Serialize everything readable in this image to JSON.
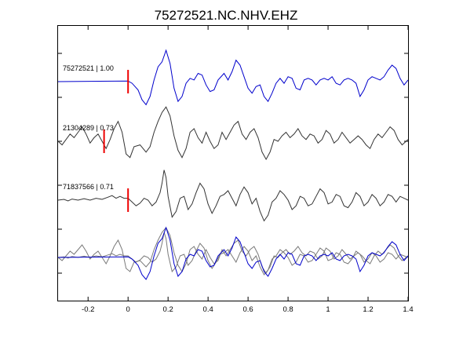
{
  "chart_data": {
    "type": "line",
    "title": "75272521.NC.NHV.EHZ",
    "xlabel": "",
    "ylabel": "",
    "xlim": [
      -0.35,
      1.4
    ],
    "xticks": [
      -0.2,
      0,
      0.2,
      0.4,
      0.6,
      0.8,
      1,
      1.2,
      1.4
    ],
    "xtick_labels": [
      "-0.2",
      "0",
      "0.2",
      "0.4",
      "0.6",
      "0.8",
      "1",
      "1.2",
      "1.4"
    ],
    "grid": false,
    "legend": "none",
    "colors": {
      "primary": "#0000cc",
      "secondary": "#333333",
      "overlay_gray": "#7a7a7a",
      "pick": "#ee0000"
    },
    "traces": [
      {
        "label": "75272521 | 1.00",
        "color": "#0000cc",
        "pick_time": 0.0,
        "points": [
          [
            -0.35,
            0
          ],
          [
            0,
            0.02
          ],
          [
            0.02,
            -0.05
          ],
          [
            0.05,
            -0.25
          ],
          [
            0.07,
            -0.55
          ],
          [
            0.09,
            -0.7
          ],
          [
            0.11,
            -0.45
          ],
          [
            0.13,
            0.05
          ],
          [
            0.15,
            0.45
          ],
          [
            0.17,
            0.6
          ],
          [
            0.19,
            0.95
          ],
          [
            0.21,
            0.55
          ],
          [
            0.23,
            -0.2
          ],
          [
            0.25,
            -0.6
          ],
          [
            0.27,
            -0.45
          ],
          [
            0.29,
            -0.05
          ],
          [
            0.31,
            0.1
          ],
          [
            0.33,
            0.05
          ],
          [
            0.35,
            0.25
          ],
          [
            0.37,
            0.2
          ],
          [
            0.39,
            -0.1
          ],
          [
            0.41,
            -0.3
          ],
          [
            0.43,
            -0.25
          ],
          [
            0.45,
            0.05
          ],
          [
            0.48,
            0.25
          ],
          [
            0.5,
            0.05
          ],
          [
            0.52,
            0.3
          ],
          [
            0.54,
            0.65
          ],
          [
            0.56,
            0.5
          ],
          [
            0.58,
            0.15
          ],
          [
            0.6,
            -0.2
          ],
          [
            0.62,
            -0.35
          ],
          [
            0.64,
            -0.15
          ],
          [
            0.66,
            -0.1
          ],
          [
            0.68,
            -0.45
          ],
          [
            0.7,
            -0.6
          ],
          [
            0.72,
            -0.35
          ],
          [
            0.74,
            -0.05
          ],
          [
            0.76,
            0.1
          ],
          [
            0.78,
            -0.05
          ],
          [
            0.8,
            0.15
          ],
          [
            0.82,
            0.1
          ],
          [
            0.84,
            -0.2
          ],
          [
            0.86,
            -0.25
          ],
          [
            0.88,
            0.05
          ],
          [
            0.9,
            0.1
          ],
          [
            0.92,
            0.05
          ],
          [
            0.94,
            -0.1
          ],
          [
            0.96,
            0.05
          ],
          [
            0.98,
            0.1
          ],
          [
            1.0,
            0.05
          ],
          [
            1.02,
            0.15
          ],
          [
            1.04,
            -0.05
          ],
          [
            1.06,
            -0.1
          ],
          [
            1.08,
            0.05
          ],
          [
            1.1,
            0.1
          ],
          [
            1.12,
            0.05
          ],
          [
            1.14,
            -0.05
          ],
          [
            1.16,
            -0.45
          ],
          [
            1.18,
            -0.25
          ],
          [
            1.2,
            0.05
          ],
          [
            1.22,
            0.15
          ],
          [
            1.24,
            0.1
          ],
          [
            1.26,
            0.05
          ],
          [
            1.28,
            0.15
          ],
          [
            1.3,
            0.35
          ],
          [
            1.32,
            0.5
          ],
          [
            1.34,
            0.4
          ],
          [
            1.36,
            0.1
          ],
          [
            1.38,
            -0.1
          ],
          [
            1.4,
            0.05
          ]
        ]
      },
      {
        "label": "21304289 | 0.73",
        "color": "#333333",
        "pick_time": -0.12,
        "points": [
          [
            -0.35,
            0
          ],
          [
            -0.33,
            -0.1
          ],
          [
            -0.31,
            0.05
          ],
          [
            -0.29,
            0.2
          ],
          [
            -0.27,
            0.1
          ],
          [
            -0.25,
            0.25
          ],
          [
            -0.23,
            0.4
          ],
          [
            -0.21,
            0.2
          ],
          [
            -0.19,
            -0.05
          ],
          [
            -0.17,
            0.1
          ],
          [
            -0.15,
            0.2
          ],
          [
            -0.13,
            0.0
          ],
          [
            -0.11,
            -0.2
          ],
          [
            -0.09,
            0.05
          ],
          [
            -0.07,
            0.35
          ],
          [
            -0.05,
            0.55
          ],
          [
            -0.03,
            0.25
          ],
          [
            -0.01,
            -0.35
          ],
          [
            0.01,
            -0.45
          ],
          [
            0.03,
            -0.15
          ],
          [
            0.06,
            -0.1
          ],
          [
            0.09,
            -0.3
          ],
          [
            0.11,
            -0.15
          ],
          [
            0.13,
            0.25
          ],
          [
            0.15,
            0.55
          ],
          [
            0.17,
            0.8
          ],
          [
            0.19,
            0.95
          ],
          [
            0.21,
            0.7
          ],
          [
            0.23,
            0.15
          ],
          [
            0.25,
            -0.25
          ],
          [
            0.27,
            -0.45
          ],
          [
            0.29,
            -0.2
          ],
          [
            0.31,
            0.25
          ],
          [
            0.33,
            0.35
          ],
          [
            0.35,
            0.1
          ],
          [
            0.37,
            -0.05
          ],
          [
            0.39,
            0.25
          ],
          [
            0.41,
            0.0
          ],
          [
            0.43,
            -0.2
          ],
          [
            0.45,
            -0.1
          ],
          [
            0.47,
            0.25
          ],
          [
            0.49,
            0.05
          ],
          [
            0.51,
            0.25
          ],
          [
            0.53,
            0.45
          ],
          [
            0.55,
            0.55
          ],
          [
            0.57,
            0.2
          ],
          [
            0.59,
            0.05
          ],
          [
            0.61,
            0.25
          ],
          [
            0.63,
            0.35
          ],
          [
            0.65,
            0.1
          ],
          [
            0.67,
            -0.3
          ],
          [
            0.69,
            -0.5
          ],
          [
            0.71,
            -0.3
          ],
          [
            0.73,
            0.05
          ],
          [
            0.75,
            0.0
          ],
          [
            0.77,
            0.15
          ],
          [
            0.79,
            0.25
          ],
          [
            0.81,
            0.1
          ],
          [
            0.83,
            0.2
          ],
          [
            0.85,
            0.35
          ],
          [
            0.87,
            0.15
          ],
          [
            0.89,
            0.05
          ],
          [
            0.91,
            0.2
          ],
          [
            0.93,
            0.15
          ],
          [
            0.95,
            -0.05
          ],
          [
            0.97,
            0.05
          ],
          [
            0.99,
            0.3
          ],
          [
            1.01,
            0.2
          ],
          [
            1.03,
            -0.05
          ],
          [
            1.05,
            0.05
          ],
          [
            1.07,
            0.25
          ],
          [
            1.09,
            0.1
          ],
          [
            1.11,
            -0.05
          ],
          [
            1.13,
            0.05
          ],
          [
            1.15,
            0.15
          ],
          [
            1.17,
            0.05
          ],
          [
            1.19,
            -0.1
          ],
          [
            1.21,
            -0.2
          ],
          [
            1.23,
            0.05
          ],
          [
            1.25,
            0.2
          ],
          [
            1.27,
            0.1
          ],
          [
            1.29,
            0.25
          ],
          [
            1.31,
            0.4
          ],
          [
            1.33,
            0.3
          ],
          [
            1.35,
            0.05
          ],
          [
            1.37,
            -0.1
          ],
          [
            1.4,
            0.05
          ]
        ]
      },
      {
        "label": "71837566 | 0.71",
        "color": "#333333",
        "pick_time": 0.0,
        "points": [
          [
            -0.35,
            0
          ],
          [
            -0.32,
            0.02
          ],
          [
            -0.3,
            -0.02
          ],
          [
            -0.28,
            0.03
          ],
          [
            -0.25,
            0.0
          ],
          [
            -0.22,
            0.04
          ],
          [
            -0.19,
            0.0
          ],
          [
            -0.16,
            0.05
          ],
          [
            -0.13,
            0.02
          ],
          [
            -0.1,
            0.08
          ],
          [
            -0.08,
            0.12
          ],
          [
            -0.06,
            0.05
          ],
          [
            -0.04,
            0.1
          ],
          [
            -0.02,
            0.05
          ],
          [
            0.0,
            0.05
          ],
          [
            0.02,
            -0.05
          ],
          [
            0.04,
            -0.15
          ],
          [
            0.06,
            -0.08
          ],
          [
            0.08,
            0.05
          ],
          [
            0.1,
            0.0
          ],
          [
            0.12,
            -0.15
          ],
          [
            0.14,
            -0.05
          ],
          [
            0.16,
            0.2
          ],
          [
            0.17,
            0.45
          ],
          [
            0.18,
            0.8
          ],
          [
            0.19,
            0.6
          ],
          [
            0.2,
            0.1
          ],
          [
            0.22,
            -0.45
          ],
          [
            0.24,
            -0.3
          ],
          [
            0.26,
            0.05
          ],
          [
            0.28,
            0.1
          ],
          [
            0.3,
            -0.25
          ],
          [
            0.32,
            -0.1
          ],
          [
            0.34,
            0.2
          ],
          [
            0.36,
            0.45
          ],
          [
            0.38,
            0.3
          ],
          [
            0.4,
            -0.1
          ],
          [
            0.42,
            -0.35
          ],
          [
            0.44,
            -0.15
          ],
          [
            0.46,
            0.1
          ],
          [
            0.48,
            0.15
          ],
          [
            0.5,
            0.25
          ],
          [
            0.52,
            0.05
          ],
          [
            0.54,
            -0.15
          ],
          [
            0.56,
            0.15
          ],
          [
            0.58,
            0.35
          ],
          [
            0.6,
            0.2
          ],
          [
            0.62,
            -0.1
          ],
          [
            0.64,
            0.05
          ],
          [
            0.66,
            -0.3
          ],
          [
            0.68,
            -0.55
          ],
          [
            0.7,
            -0.4
          ],
          [
            0.72,
            -0.05
          ],
          [
            0.74,
            0.05
          ],
          [
            0.76,
            0.25
          ],
          [
            0.78,
            0.15
          ],
          [
            0.8,
            0.0
          ],
          [
            0.82,
            -0.25
          ],
          [
            0.84,
            -0.15
          ],
          [
            0.86,
            0.1
          ],
          [
            0.88,
            0.05
          ],
          [
            0.9,
            -0.15
          ],
          [
            0.92,
            -0.1
          ],
          [
            0.94,
            0.1
          ],
          [
            0.96,
            0.3
          ],
          [
            0.98,
            0.2
          ],
          [
            1.0,
            -0.1
          ],
          [
            1.02,
            -0.05
          ],
          [
            1.04,
            0.15
          ],
          [
            1.06,
            0.1
          ],
          [
            1.08,
            -0.15
          ],
          [
            1.1,
            -0.2
          ],
          [
            1.12,
            -0.05
          ],
          [
            1.14,
            0.2
          ],
          [
            1.16,
            0.1
          ],
          [
            1.18,
            -0.15
          ],
          [
            1.2,
            -0.05
          ],
          [
            1.22,
            0.15
          ],
          [
            1.24,
            0.05
          ],
          [
            1.26,
            -0.15
          ],
          [
            1.28,
            -0.05
          ],
          [
            1.3,
            0.15
          ],
          [
            1.32,
            0.1
          ],
          [
            1.34,
            -0.05
          ],
          [
            1.36,
            0.1
          ],
          [
            1.38,
            0.05
          ],
          [
            1.4,
            0.0
          ]
        ]
      }
    ]
  }
}
